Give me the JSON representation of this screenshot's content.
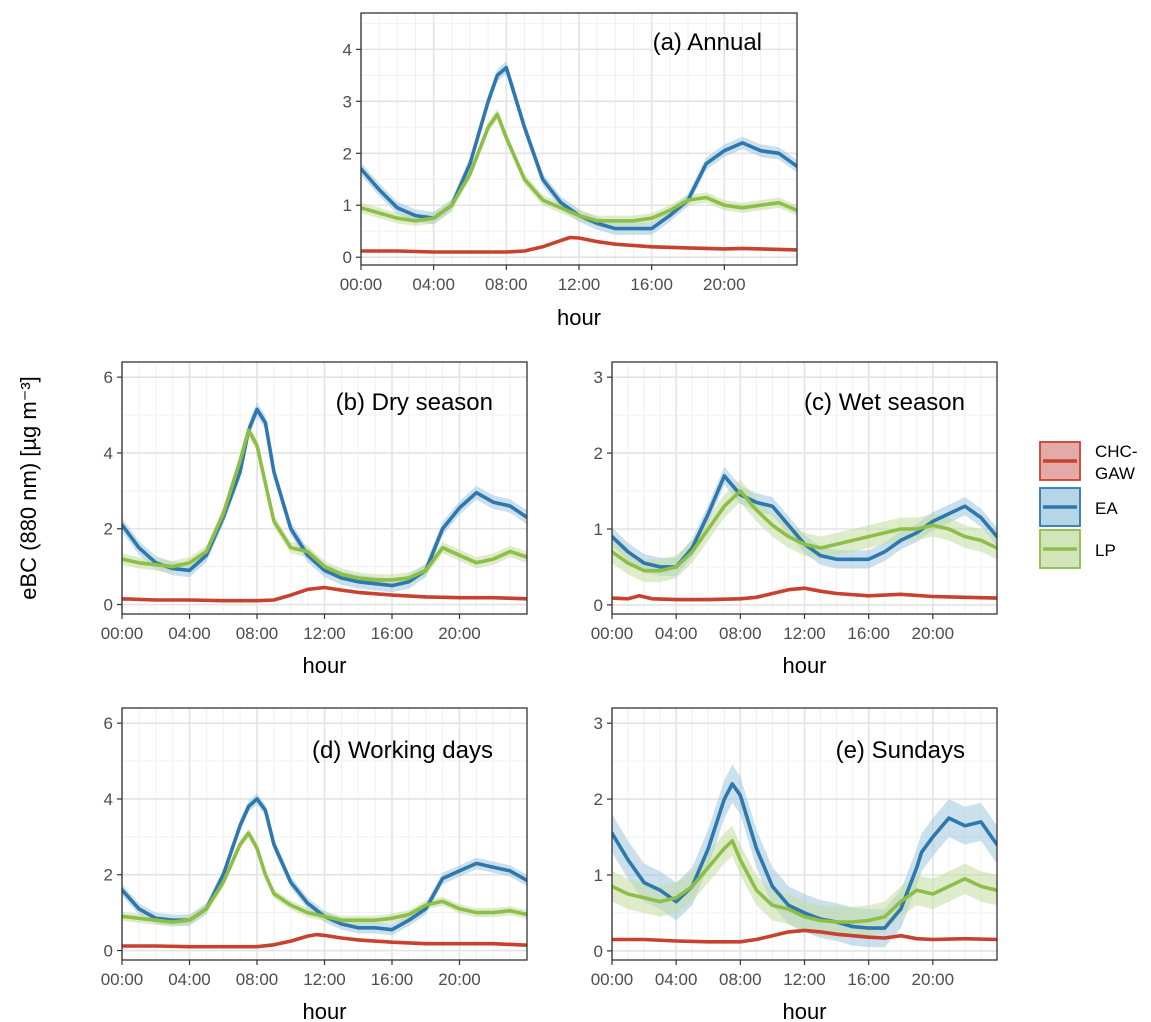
{
  "figure": {
    "y_axis_title": "eBC (880 nm) [µg m⁻³]"
  },
  "legend": [
    {
      "label_lines": [
        "CHC-",
        "GAW"
      ],
      "color": "#c8412f",
      "fill": "#d98e8a"
    },
    {
      "label_lines": [
        "EA"
      ],
      "color": "#2e78ae",
      "fill": "#9ec7de"
    },
    {
      "label_lines": [
        "LP"
      ],
      "color": "#8dbf47",
      "fill": "#c3dca3"
    }
  ],
  "chart_data": [
    {
      "type": "line",
      "title": "(a) Annual",
      "xlabel": "hour",
      "ylabel": "",
      "xlim": [
        0,
        24
      ],
      "ylim": [
        -0.15,
        4.7
      ],
      "x_ticks": [
        0,
        4,
        8,
        12,
        16,
        20
      ],
      "x_tick_labels": [
        "00:00",
        "04:00",
        "08:00",
        "12:00",
        "16:00",
        "20:00"
      ],
      "y_ticks": [
        0,
        1,
        2,
        3,
        4
      ],
      "y_tick_labels": [
        "0",
        "1",
        "2",
        "3",
        "4"
      ],
      "grid": true,
      "series": [
        {
          "name": "CHC-GAW",
          "band": 0.02,
          "x": [
            0,
            2,
            4,
            6,
            8,
            9,
            10,
            11,
            11.5,
            12,
            13,
            14,
            16,
            18,
            20,
            21,
            22,
            23,
            24
          ],
          "y": [
            0.12,
            0.12,
            0.1,
            0.1,
            0.1,
            0.12,
            0.2,
            0.32,
            0.38,
            0.37,
            0.3,
            0.25,
            0.2,
            0.18,
            0.16,
            0.17,
            0.16,
            0.15,
            0.14
          ]
        },
        {
          "name": "EA",
          "band": 0.12,
          "x": [
            0,
            1,
            2,
            3,
            4,
            5,
            6,
            7,
            7.5,
            8,
            9,
            10,
            11,
            12,
            13,
            14,
            15,
            16,
            17,
            18,
            19,
            20,
            21,
            22,
            23,
            24
          ],
          "y": [
            1.7,
            1.3,
            0.95,
            0.8,
            0.75,
            1.0,
            1.8,
            3.0,
            3.5,
            3.65,
            2.5,
            1.5,
            1.05,
            0.8,
            0.65,
            0.55,
            0.55,
            0.55,
            0.8,
            1.1,
            1.8,
            2.05,
            2.2,
            2.05,
            2.0,
            1.75
          ]
        },
        {
          "name": "LP",
          "band": 0.1,
          "x": [
            0,
            1,
            2,
            3,
            4,
            5,
            6,
            7,
            7.5,
            8,
            9,
            10,
            11,
            12,
            13,
            14,
            15,
            16,
            17,
            18,
            19,
            20,
            21,
            22,
            23,
            24
          ],
          "y": [
            0.95,
            0.85,
            0.75,
            0.7,
            0.75,
            1.0,
            1.6,
            2.5,
            2.75,
            2.3,
            1.5,
            1.1,
            0.95,
            0.8,
            0.7,
            0.7,
            0.7,
            0.75,
            0.9,
            1.1,
            1.15,
            1.0,
            0.95,
            1.0,
            1.05,
            0.9
          ]
        }
      ]
    },
    {
      "type": "line",
      "title": "(b) Dry season",
      "xlabel": "hour",
      "ylabel": "",
      "xlim": [
        0,
        24
      ],
      "ylim": [
        -0.25,
        6.4
      ],
      "x_ticks": [
        0,
        4,
        8,
        12,
        16,
        20
      ],
      "x_tick_labels": [
        "00:00",
        "04:00",
        "08:00",
        "12:00",
        "16:00",
        "20:00"
      ],
      "y_ticks": [
        0,
        2,
        4,
        6
      ],
      "y_tick_labels": [
        "0",
        "2",
        "4",
        "6"
      ],
      "grid": true,
      "series": [
        {
          "name": "CHC-GAW",
          "band": 0.03,
          "x": [
            0,
            2,
            4,
            6,
            8,
            9,
            10,
            11,
            12,
            13,
            14,
            16,
            18,
            20,
            22,
            24
          ],
          "y": [
            0.15,
            0.12,
            0.12,
            0.1,
            0.1,
            0.12,
            0.25,
            0.4,
            0.45,
            0.38,
            0.32,
            0.25,
            0.2,
            0.18,
            0.18,
            0.15
          ]
        },
        {
          "name": "EA",
          "band": 0.18,
          "x": [
            0,
            1,
            2,
            3,
            4,
            5,
            6,
            7,
            7.5,
            8,
            8.5,
            9,
            10,
            11,
            12,
            13,
            14,
            15,
            16,
            17,
            18,
            19,
            20,
            21,
            22,
            23,
            24
          ],
          "y": [
            2.1,
            1.5,
            1.1,
            0.95,
            0.9,
            1.3,
            2.3,
            3.5,
            4.6,
            5.15,
            4.8,
            3.5,
            2.0,
            1.3,
            0.9,
            0.7,
            0.6,
            0.55,
            0.5,
            0.6,
            0.9,
            2.0,
            2.55,
            2.95,
            2.7,
            2.6,
            2.3
          ]
        },
        {
          "name": "LP",
          "band": 0.15,
          "x": [
            0,
            1,
            2,
            3,
            4,
            5,
            6,
            7,
            7.5,
            8,
            8.5,
            9,
            10,
            11,
            12,
            13,
            14,
            15,
            16,
            17,
            18,
            19,
            20,
            21,
            22,
            23,
            24
          ],
          "y": [
            1.2,
            1.1,
            1.05,
            1.0,
            1.1,
            1.4,
            2.4,
            3.8,
            4.6,
            4.2,
            3.2,
            2.2,
            1.5,
            1.4,
            1.0,
            0.8,
            0.7,
            0.65,
            0.65,
            0.7,
            0.9,
            1.5,
            1.3,
            1.1,
            1.2,
            1.4,
            1.25
          ]
        }
      ]
    },
    {
      "type": "line",
      "title": "(c) Wet season",
      "xlabel": "hour",
      "ylabel": "",
      "xlim": [
        0,
        24
      ],
      "ylim": [
        -0.12,
        3.2
      ],
      "x_ticks": [
        0,
        4,
        8,
        12,
        16,
        20
      ],
      "x_tick_labels": [
        "00:00",
        "04:00",
        "08:00",
        "12:00",
        "16:00",
        "20:00"
      ],
      "y_ticks": [
        0,
        1,
        2,
        3
      ],
      "y_tick_labels": [
        "0",
        "1",
        "2",
        "3"
      ],
      "grid": true,
      "series": [
        {
          "name": "CHC-GAW",
          "band": 0.02,
          "x": [
            0,
            1,
            1.7,
            2.5,
            4,
            6,
            8,
            9,
            10,
            11,
            12,
            13,
            14,
            16,
            18,
            20,
            22,
            24
          ],
          "y": [
            0.09,
            0.08,
            0.12,
            0.08,
            0.07,
            0.07,
            0.08,
            0.1,
            0.15,
            0.2,
            0.22,
            0.18,
            0.15,
            0.12,
            0.14,
            0.11,
            0.1,
            0.09
          ]
        },
        {
          "name": "EA",
          "band": 0.12,
          "x": [
            0,
            1,
            2,
            3,
            4,
            5,
            6,
            7,
            8,
            9,
            10,
            11,
            12,
            13,
            14,
            15,
            16,
            17,
            18,
            19,
            20,
            21,
            22,
            23,
            24
          ],
          "y": [
            0.9,
            0.7,
            0.55,
            0.5,
            0.5,
            0.75,
            1.2,
            1.7,
            1.45,
            1.35,
            1.3,
            1.05,
            0.8,
            0.65,
            0.6,
            0.6,
            0.6,
            0.7,
            0.85,
            0.95,
            1.1,
            1.2,
            1.3,
            1.15,
            0.9
          ]
        },
        {
          "name": "LP",
          "band": 0.15,
          "x": [
            0,
            1,
            2,
            3,
            4,
            5,
            6,
            7,
            8,
            9,
            10,
            11,
            12,
            13,
            14,
            15,
            16,
            17,
            18,
            19,
            20,
            21,
            22,
            23,
            24
          ],
          "y": [
            0.7,
            0.55,
            0.45,
            0.45,
            0.5,
            0.7,
            1.0,
            1.3,
            1.5,
            1.25,
            1.05,
            0.9,
            0.8,
            0.75,
            0.8,
            0.85,
            0.9,
            0.95,
            1.0,
            1.0,
            1.05,
            1.0,
            0.9,
            0.85,
            0.75
          ]
        }
      ]
    },
    {
      "type": "line",
      "title": "(d) Working days",
      "xlabel": "hour",
      "ylabel": "",
      "xlim": [
        0,
        24
      ],
      "ylim": [
        -0.25,
        6.4
      ],
      "x_ticks": [
        0,
        4,
        8,
        12,
        16,
        20
      ],
      "x_tick_labels": [
        "00:00",
        "04:00",
        "08:00",
        "12:00",
        "16:00",
        "20:00"
      ],
      "y_ticks": [
        0,
        2,
        4,
        6
      ],
      "y_tick_labels": [
        "0",
        "2",
        "4",
        "6"
      ],
      "grid": true,
      "series": [
        {
          "name": "CHC-GAW",
          "band": 0.03,
          "x": [
            0,
            2,
            4,
            6,
            8,
            9,
            10,
            11,
            11.5,
            12,
            13,
            14,
            16,
            18,
            20,
            22,
            24
          ],
          "y": [
            0.12,
            0.12,
            0.1,
            0.1,
            0.1,
            0.15,
            0.25,
            0.38,
            0.42,
            0.4,
            0.33,
            0.28,
            0.22,
            0.18,
            0.18,
            0.18,
            0.14
          ]
        },
        {
          "name": "EA",
          "band": 0.15,
          "x": [
            0,
            1,
            2,
            3,
            4,
            5,
            6,
            7,
            7.5,
            8,
            8.5,
            9,
            10,
            11,
            12,
            13,
            14,
            15,
            16,
            17,
            18,
            19,
            20,
            21,
            22,
            23,
            24
          ],
          "y": [
            1.6,
            1.1,
            0.85,
            0.8,
            0.8,
            1.1,
            2.0,
            3.3,
            3.8,
            4.0,
            3.7,
            2.8,
            1.8,
            1.25,
            0.9,
            0.7,
            0.6,
            0.6,
            0.55,
            0.8,
            1.1,
            1.9,
            2.1,
            2.3,
            2.2,
            2.1,
            1.85
          ]
        },
        {
          "name": "LP",
          "band": 0.12,
          "x": [
            0,
            1,
            2,
            3,
            4,
            5,
            6,
            7,
            7.5,
            8,
            8.5,
            9,
            10,
            11,
            12,
            13,
            14,
            15,
            16,
            17,
            18,
            19,
            20,
            21,
            22,
            23,
            24
          ],
          "y": [
            0.9,
            0.85,
            0.8,
            0.75,
            0.8,
            1.1,
            1.8,
            2.8,
            3.1,
            2.7,
            2.0,
            1.5,
            1.2,
            1.0,
            0.9,
            0.8,
            0.8,
            0.8,
            0.85,
            0.95,
            1.2,
            1.3,
            1.1,
            1.0,
            1.0,
            1.05,
            0.95
          ]
        }
      ]
    },
    {
      "type": "line",
      "title": "(e) Sundays",
      "xlabel": "hour",
      "ylabel": "",
      "xlim": [
        0,
        24
      ],
      "ylim": [
        -0.12,
        3.2
      ],
      "x_ticks": [
        0,
        4,
        8,
        12,
        16,
        20
      ],
      "x_tick_labels": [
        "00:00",
        "04:00",
        "08:00",
        "12:00",
        "16:00",
        "20:00"
      ],
      "y_ticks": [
        0,
        1,
        2,
        3
      ],
      "y_tick_labels": [
        "0",
        "1",
        "2",
        "3"
      ],
      "grid": true,
      "series": [
        {
          "name": "CHC-GAW",
          "band": 0.02,
          "x": [
            0,
            2,
            4,
            6,
            8,
            9,
            10,
            11,
            12,
            13,
            14,
            15,
            16,
            17,
            18,
            19,
            20,
            22,
            24
          ],
          "y": [
            0.15,
            0.15,
            0.13,
            0.12,
            0.12,
            0.15,
            0.2,
            0.25,
            0.27,
            0.25,
            0.22,
            0.2,
            0.18,
            0.17,
            0.2,
            0.16,
            0.15,
            0.16,
            0.15
          ]
        },
        {
          "name": "EA",
          "band": 0.25,
          "x": [
            0,
            1,
            2,
            3,
            4,
            5,
            6,
            7,
            7.5,
            8,
            9,
            10,
            11,
            12,
            13,
            14,
            15,
            16,
            17,
            18,
            19,
            19.3,
            20,
            21,
            22,
            23,
            24
          ],
          "y": [
            1.55,
            1.2,
            0.9,
            0.8,
            0.65,
            0.85,
            1.35,
            2.0,
            2.2,
            2.05,
            1.35,
            0.85,
            0.6,
            0.5,
            0.42,
            0.38,
            0.32,
            0.3,
            0.3,
            0.55,
            1.1,
            1.3,
            1.5,
            1.75,
            1.65,
            1.7,
            1.4
          ]
        },
        {
          "name": "LP",
          "band": 0.2,
          "x": [
            0,
            1,
            2,
            3,
            4,
            5,
            6,
            7,
            7.5,
            8,
            9,
            10,
            11,
            12,
            13,
            14,
            15,
            16,
            17,
            18,
            19,
            20,
            21,
            22,
            23,
            24
          ],
          "y": [
            0.85,
            0.75,
            0.7,
            0.65,
            0.7,
            0.85,
            1.1,
            1.35,
            1.45,
            1.2,
            0.8,
            0.6,
            0.55,
            0.45,
            0.4,
            0.38,
            0.38,
            0.4,
            0.45,
            0.65,
            0.8,
            0.75,
            0.85,
            0.95,
            0.85,
            0.8
          ]
        }
      ]
    }
  ]
}
